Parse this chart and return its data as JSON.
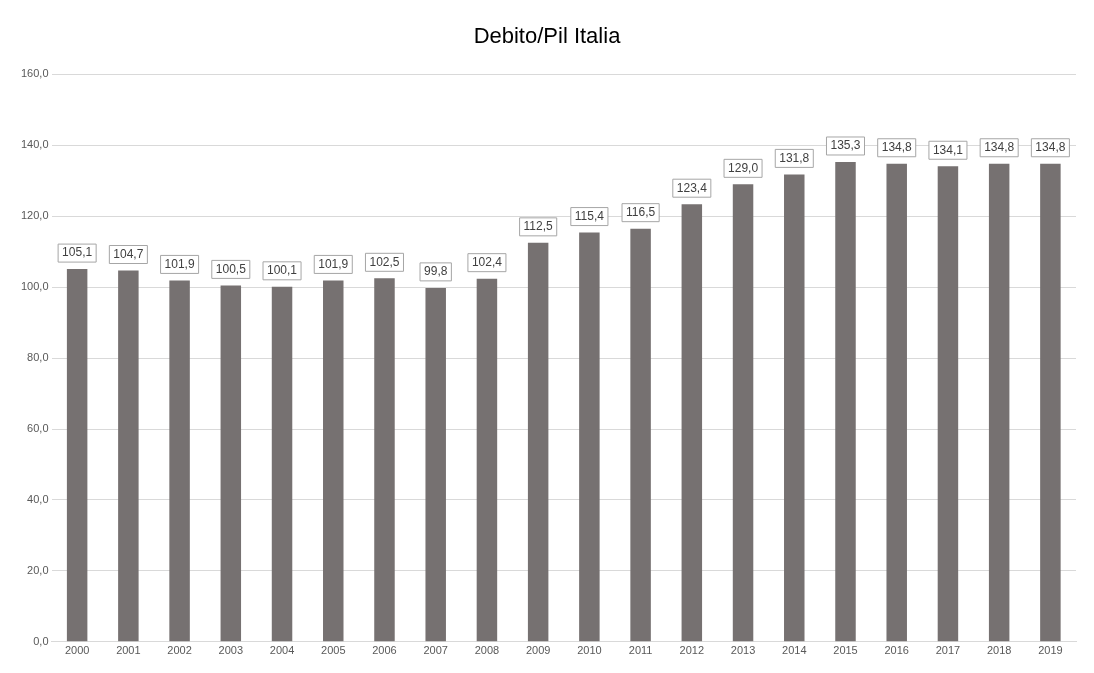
{
  "chart_data": {
    "type": "bar",
    "title": "Debito/Pil Italia",
    "categories": [
      "2000",
      "2001",
      "2002",
      "2003",
      "2004",
      "2005",
      "2006",
      "2007",
      "2008",
      "2009",
      "2010",
      "2011",
      "2012",
      "2013",
      "2014",
      "2015",
      "2016",
      "2017",
      "2018",
      "2019"
    ],
    "values": [
      105.1,
      104.7,
      101.9,
      100.5,
      100.1,
      101.9,
      102.5,
      99.8,
      102.4,
      112.5,
      115.4,
      116.5,
      123.4,
      129.0,
      131.8,
      135.3,
      134.8,
      134.1,
      134.8,
      134.8
    ],
    "value_labels": [
      "105,1",
      "104,7",
      "101,9",
      "100,5",
      "100,1",
      "101,9",
      "102,5",
      "99,8",
      "102,4",
      "112,5",
      "115,4",
      "116,5",
      "123,4",
      "129,0",
      "131,8",
      "135,3",
      "134,8",
      "134,1",
      "134,8",
      "134,8"
    ],
    "color": "#767171",
    "ylim": [
      0,
      160
    ],
    "yticks": [
      {
        "value": 0,
        "label": "0,0"
      },
      {
        "value": 20,
        "label": "20,0"
      },
      {
        "value": 40,
        "label": "40,0"
      },
      {
        "value": 60,
        "label": "60,0"
      },
      {
        "value": 80,
        "label": "80,0"
      },
      {
        "value": 100,
        "label": "100,0"
      },
      {
        "value": 120,
        "label": "120,0"
      },
      {
        "value": 140,
        "label": "140,0"
      },
      {
        "value": 160,
        "label": "160,0"
      }
    ],
    "grid": "y",
    "legend": false
  }
}
